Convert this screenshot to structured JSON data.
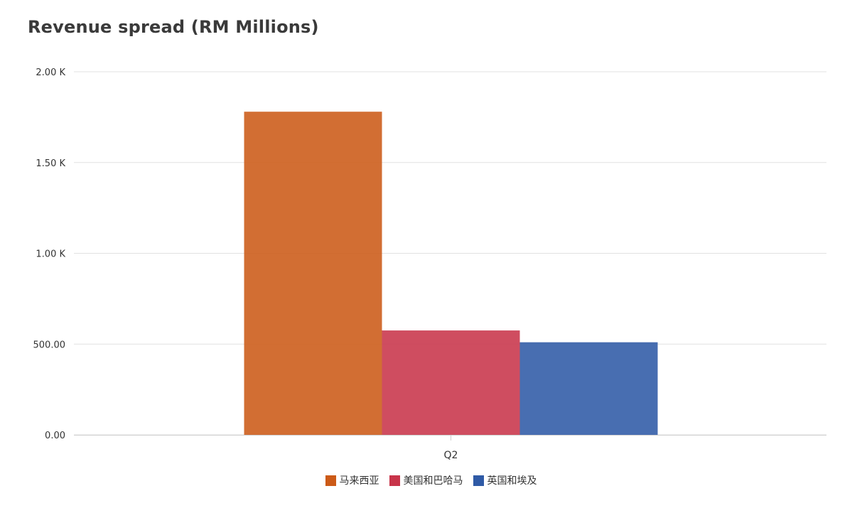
{
  "chart_data": {
    "type": "bar",
    "title": "Revenue spread (RM Millions)",
    "categories": [
      "Q2"
    ],
    "series": [
      {
        "name": "马来西亚",
        "values": [
          1780
        ],
        "color": "#cc5a17"
      },
      {
        "name": "美国和巴哈马",
        "values": [
          575
        ],
        "color": "#c8344a"
      },
      {
        "name": "英国和埃及",
        "values": [
          510
        ],
        "color": "#2f5aa6"
      }
    ],
    "ylim": [
      0,
      2000
    ],
    "yticks": [
      {
        "value": 0,
        "label": "0.00"
      },
      {
        "value": 500,
        "label": "500.00"
      },
      {
        "value": 1000,
        "label": "1.00 K"
      },
      {
        "value": 1500,
        "label": "1.50 K"
      },
      {
        "value": 2000,
        "label": "2.00 K"
      }
    ],
    "grid": true,
    "legend_position": "bottom"
  }
}
